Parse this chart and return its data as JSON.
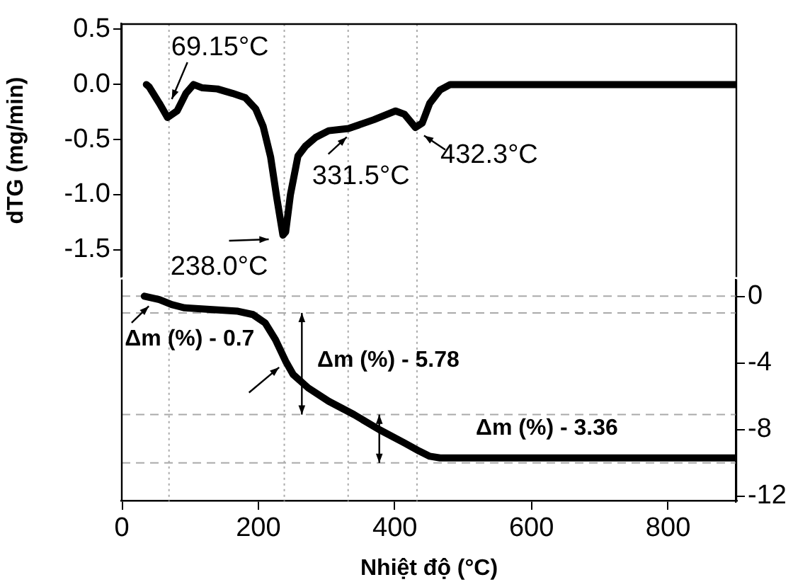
{
  "chart_data": [
    {
      "type": "line",
      "ylabel": "dTG (mg/min)",
      "tick_labels": "y",
      "marker": "none",
      "line_style": "solid",
      "x": [
        36,
        40,
        55,
        67,
        81,
        94,
        105,
        118,
        140,
        162,
        181,
        196,
        207,
        218,
        227,
        236,
        240,
        247,
        258,
        269,
        284,
        303,
        332,
        369,
        401,
        414,
        430,
        440,
        451,
        466,
        481,
        900
      ],
      "series": [
        {
          "color": "#000000",
          "values": [
            0.0,
            -0.02,
            -0.17,
            -0.3,
            -0.24,
            -0.08,
            0.0,
            -0.03,
            -0.04,
            -0.08,
            -0.12,
            -0.22,
            -0.38,
            -0.66,
            -1.03,
            -1.37,
            -1.34,
            -1.0,
            -0.65,
            -0.56,
            -0.48,
            -0.42,
            -0.4,
            -0.32,
            -0.24,
            -0.27,
            -0.39,
            -0.35,
            -0.17,
            -0.05,
            0.0,
            0.0
          ]
        }
      ],
      "xlim": [
        0,
        900
      ],
      "ylim": [
        -1.75,
        0.55
      ],
      "yticks": [
        0.5,
        {
          "value": 0,
          "label": "0.0"
        },
        -0.5,
        {
          "value": -1,
          "label": "-1.0"
        },
        -1.5
      ],
      "ref_lines": [
        {
          "axis": "x",
          "value": 69.15,
          "color": "#aaaaaa",
          "line_style": "dotted"
        },
        {
          "axis": "x",
          "value": 238.0,
          "color": "#aaaaaa",
          "line_style": "dotted"
        },
        {
          "axis": "x",
          "value": 331.5,
          "color": "#aaaaaa",
          "line_style": "dotted"
        },
        {
          "axis": "x",
          "value": 432.3,
          "color": "#aaaaaa",
          "line_style": "dotted"
        }
      ],
      "annotations": [
        {
          "text": "69.15°C",
          "x": 69.15,
          "y": -0.3
        },
        {
          "text": "238.0°C",
          "x": 238.0,
          "y": -1.42
        },
        {
          "text": "331.5°C",
          "x": 331.5,
          "y": -0.4
        },
        {
          "text": "432.3°C",
          "x": 432.3,
          "y": -0.4
        }
      ]
    },
    {
      "type": "line",
      "xlabel": "Nhiệt độ (°C)",
      "marker": "none",
      "line_style": "solid",
      "x": [
        33,
        55,
        73,
        92,
        133,
        170,
        192,
        210,
        225,
        240,
        251,
        273,
        303,
        340,
        377,
        414,
        436,
        451,
        466,
        900
      ],
      "series": [
        {
          "color": "#000000",
          "axis": "y2",
          "values": [
            0,
            -0.2,
            -0.5,
            -0.7,
            -0.8,
            -0.9,
            -1.1,
            -1.6,
            -2.6,
            -3.9,
            -4.7,
            -5.5,
            -6.3,
            -7.1,
            -8.0,
            -8.8,
            -9.3,
            -9.6,
            -9.7,
            -9.7
          ]
        }
      ],
      "xlim": [
        0,
        900
      ],
      "xticks": [
        0,
        200,
        400,
        600,
        800
      ],
      "y2lim": [
        -12.3,
        1
      ],
      "y2ticks": [
        0,
        -4,
        -8,
        -12
      ],
      "ref_lines": [
        {
          "axis": "x",
          "value": 69.15,
          "color": "#aaaaaa",
          "line_style": "dotted"
        },
        {
          "axis": "x",
          "value": 238.0,
          "color": "#aaaaaa",
          "line_style": "dotted"
        },
        {
          "axis": "x",
          "value": 331.5,
          "color": "#aaaaaa",
          "line_style": "dotted"
        },
        {
          "axis": "x",
          "value": 432.3,
          "color": "#aaaaaa",
          "line_style": "dotted"
        },
        {
          "axis": "y2",
          "value": 0,
          "color": "#aaaaaa",
          "line_style": "dashed"
        },
        {
          "axis": "y2",
          "value": -1,
          "color": "#aaaaaa",
          "line_style": "dashed"
        },
        {
          "axis": "y2",
          "value": -7.1,
          "color": "#aaaaaa",
          "line_style": "dashed"
        },
        {
          "axis": "y2",
          "value": -10,
          "color": "#aaaaaa",
          "line_style": "dashed"
        }
      ],
      "annotations": [
        "Δm (%) - 0.7",
        "Δm (%) - 5.78",
        "Δm (%) - 3.36"
      ]
    }
  ]
}
